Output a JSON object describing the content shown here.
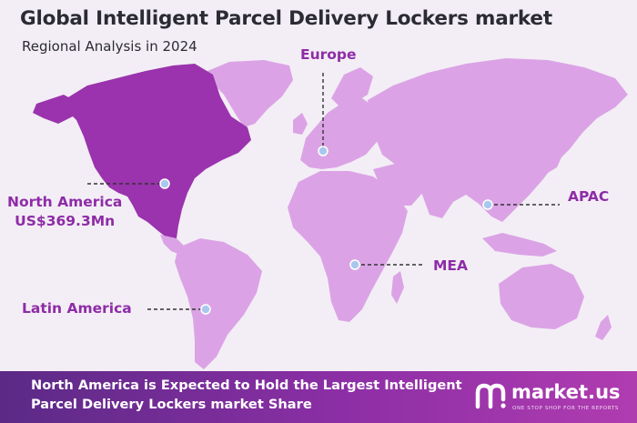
{
  "header": {
    "title": "Global Intelligent Parcel Delivery Lockers market",
    "subtitle": "Regional Analysis in 2024"
  },
  "regions": {
    "north_america": {
      "name": "North America",
      "value": "US$369.3Mn",
      "highlighted": true
    },
    "europe": {
      "name": "Europe"
    },
    "apac": {
      "name": "APAC"
    },
    "mea": {
      "name": "MEA"
    },
    "latin_america": {
      "name": "Latin America"
    }
  },
  "footer": {
    "text": "North America is Expected to Hold the Largest Intelligent Parcel Delivery Lockers market Share"
  },
  "brand": {
    "name": "market.us",
    "tagline": "ONE STOP SHOP FOR THE REPORTS"
  },
  "colors": {
    "highlight_region": "#9a33ad",
    "other_regions": "#dba3e6",
    "label_text": "#8e2ca7",
    "marker": "#a9c8ee"
  }
}
